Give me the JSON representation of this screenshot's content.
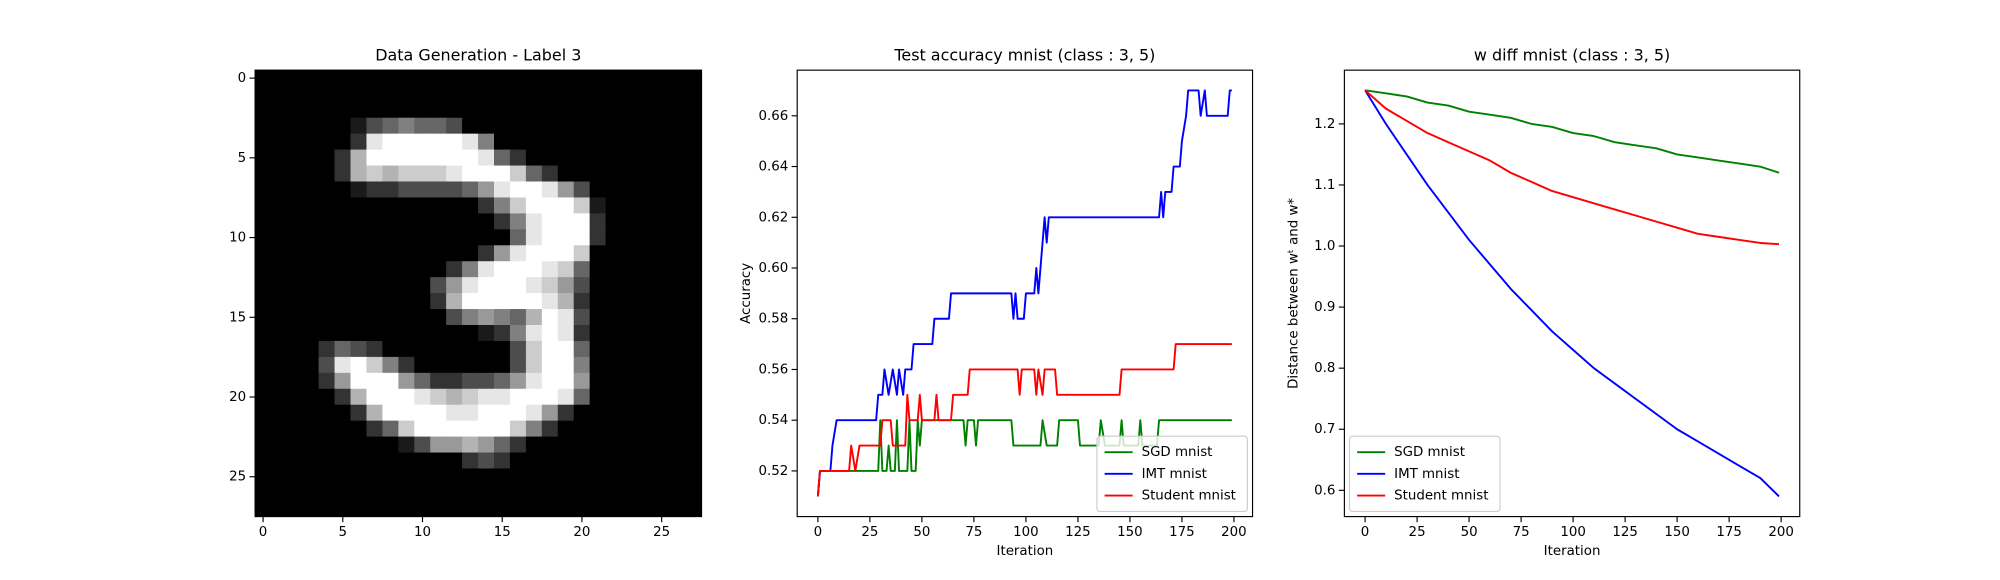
{
  "chart_data": [
    {
      "type": "heatmap",
      "title": "Data Generation - Label 3",
      "cmap": "gray",
      "xlim": [
        -0.5,
        27.5
      ],
      "ylim": [
        27.5,
        -0.5
      ],
      "xticks": [
        0,
        5,
        10,
        15,
        20,
        25
      ],
      "yticks": [
        0,
        5,
        10,
        15,
        20,
        25
      ],
      "z": [
        [
          0,
          0,
          0,
          0,
          0,
          0,
          0,
          0,
          0,
          0,
          0,
          0,
          0,
          0,
          0,
          0,
          0,
          0,
          0,
          0,
          0,
          0,
          0,
          0,
          0,
          0,
          0,
          0
        ],
        [
          0,
          0,
          0,
          0,
          0,
          0,
          0,
          0,
          0,
          0,
          0,
          0,
          0,
          0,
          0,
          0,
          0,
          0,
          0,
          0,
          0,
          0,
          0,
          0,
          0,
          0,
          0,
          0
        ],
        [
          0,
          0,
          0,
          0,
          0,
          0,
          0,
          0,
          0,
          0,
          0,
          0,
          0,
          0,
          0,
          0,
          0,
          0,
          0,
          0,
          0,
          0,
          0,
          0,
          0,
          0,
          0,
          0
        ],
        [
          0,
          0,
          0,
          0,
          0,
          0,
          0.1,
          0.3,
          0.4,
          0.5,
          0.4,
          0.4,
          0.3,
          0,
          0,
          0,
          0,
          0,
          0,
          0,
          0,
          0,
          0,
          0,
          0,
          0,
          0,
          0
        ],
        [
          0,
          0,
          0,
          0,
          0,
          0,
          0.2,
          0.9,
          1,
          1,
          1,
          1,
          1,
          0.9,
          0.5,
          0,
          0,
          0,
          0,
          0,
          0,
          0,
          0,
          0,
          0,
          0,
          0,
          0
        ],
        [
          0,
          0,
          0,
          0,
          0,
          0.2,
          0.7,
          1,
          1,
          1,
          1,
          1,
          1,
          1,
          0.9,
          0.4,
          0.2,
          0,
          0,
          0,
          0,
          0,
          0,
          0,
          0,
          0,
          0,
          0
        ],
        [
          0,
          0,
          0,
          0,
          0,
          0.2,
          0.7,
          0.8,
          0.7,
          0.8,
          0.8,
          0.8,
          0.9,
          1,
          1,
          1,
          0.8,
          0.4,
          0.2,
          0,
          0,
          0,
          0,
          0,
          0,
          0,
          0,
          0
        ],
        [
          0,
          0,
          0,
          0,
          0,
          0,
          0.1,
          0.2,
          0.2,
          0.3,
          0.3,
          0.3,
          0.3,
          0.4,
          0.6,
          0.9,
          1,
          1,
          0.9,
          0.6,
          0.3,
          0,
          0,
          0,
          0,
          0,
          0,
          0
        ],
        [
          0,
          0,
          0,
          0,
          0,
          0,
          0,
          0,
          0,
          0,
          0,
          0,
          0,
          0,
          0.2,
          0.5,
          0.8,
          1,
          1,
          1,
          0.8,
          0.1,
          0,
          0,
          0,
          0,
          0,
          0
        ],
        [
          0,
          0,
          0,
          0,
          0,
          0,
          0,
          0,
          0,
          0,
          0,
          0,
          0,
          0,
          0,
          0.2,
          0.5,
          0.9,
          1,
          1,
          1,
          0.2,
          0,
          0,
          0,
          0,
          0,
          0
        ],
        [
          0,
          0,
          0,
          0,
          0,
          0,
          0,
          0,
          0,
          0,
          0,
          0,
          0,
          0,
          0,
          0,
          0.4,
          0.9,
          1,
          1,
          1,
          0.2,
          0,
          0,
          0,
          0,
          0,
          0
        ],
        [
          0,
          0,
          0,
          0,
          0,
          0,
          0,
          0,
          0,
          0,
          0,
          0,
          0,
          0,
          0.2,
          0.6,
          0.9,
          1,
          1,
          1,
          0.8,
          0,
          0,
          0,
          0,
          0,
          0,
          0
        ],
        [
          0,
          0,
          0,
          0,
          0,
          0,
          0,
          0,
          0,
          0,
          0,
          0,
          0.2,
          0.5,
          0.9,
          1,
          1,
          1,
          0.9,
          0.8,
          0.4,
          0,
          0,
          0,
          0,
          0,
          0,
          0
        ],
        [
          0,
          0,
          0,
          0,
          0,
          0,
          0,
          0,
          0,
          0,
          0,
          0.3,
          0.6,
          0.9,
          1,
          1,
          1,
          0.9,
          0.8,
          0.6,
          0.3,
          0,
          0,
          0,
          0,
          0,
          0,
          0
        ],
        [
          0,
          0,
          0,
          0,
          0,
          0,
          0,
          0,
          0,
          0,
          0,
          0.2,
          0.7,
          1,
          1,
          1,
          1,
          1,
          0.9,
          0.7,
          0.2,
          0,
          0,
          0,
          0,
          0,
          0,
          0
        ],
        [
          0,
          0,
          0,
          0,
          0,
          0,
          0,
          0,
          0,
          0,
          0,
          0,
          0.3,
          0.5,
          0.6,
          0.5,
          0.4,
          0.7,
          1,
          0.9,
          0.3,
          0,
          0,
          0,
          0,
          0,
          0,
          0
        ],
        [
          0,
          0,
          0,
          0,
          0,
          0,
          0,
          0,
          0,
          0,
          0,
          0,
          0,
          0,
          0.1,
          0.2,
          0.5,
          0.9,
          1,
          0.9,
          0.2,
          0,
          0,
          0,
          0,
          0,
          0,
          0
        ],
        [
          0,
          0,
          0,
          0,
          0.2,
          0.4,
          0.3,
          0.2,
          0,
          0,
          0,
          0,
          0,
          0,
          0,
          0,
          0.3,
          0.8,
          1,
          1,
          0.4,
          0,
          0,
          0,
          0,
          0,
          0,
          0
        ],
        [
          0,
          0,
          0,
          0,
          0.3,
          0.9,
          1,
          0.8,
          0.5,
          0.2,
          0,
          0,
          0,
          0,
          0,
          0,
          0.3,
          0.8,
          1,
          1,
          0.5,
          0,
          0,
          0,
          0,
          0,
          0,
          0
        ],
        [
          0,
          0,
          0,
          0,
          0.2,
          0.6,
          1,
          1,
          1,
          0.6,
          0.4,
          0.2,
          0.2,
          0.3,
          0.3,
          0.4,
          0.6,
          0.9,
          1,
          1,
          0.6,
          0,
          0,
          0,
          0,
          0,
          0,
          0
        ],
        [
          0,
          0,
          0,
          0,
          0,
          0.2,
          0.7,
          1,
          1,
          1,
          0.9,
          0.8,
          0.7,
          0.8,
          0.9,
          0.9,
          1,
          1,
          1,
          0.9,
          0.4,
          0,
          0,
          0,
          0,
          0,
          0,
          0
        ],
        [
          0,
          0,
          0,
          0,
          0,
          0,
          0.2,
          0.7,
          1,
          1,
          1,
          1,
          0.9,
          0.9,
          1,
          1,
          1,
          0.9,
          0.6,
          0.2,
          0,
          0,
          0,
          0,
          0,
          0,
          0,
          0
        ],
        [
          0,
          0,
          0,
          0,
          0,
          0,
          0,
          0.2,
          0.4,
          0.8,
          1,
          1,
          1,
          1,
          1,
          1,
          0.8,
          0.5,
          0.2,
          0,
          0,
          0,
          0,
          0,
          0,
          0,
          0,
          0
        ],
        [
          0,
          0,
          0,
          0,
          0,
          0,
          0,
          0,
          0,
          0.1,
          0.3,
          0.6,
          0.6,
          0.7,
          0.6,
          0.4,
          0.2,
          0,
          0,
          0,
          0,
          0,
          0,
          0,
          0,
          0,
          0,
          0
        ],
        [
          0,
          0,
          0,
          0,
          0,
          0,
          0,
          0,
          0,
          0,
          0,
          0,
          0,
          0.2,
          0.3,
          0.2,
          0,
          0,
          0,
          0,
          0,
          0,
          0,
          0,
          0,
          0,
          0,
          0
        ],
        [
          0,
          0,
          0,
          0,
          0,
          0,
          0,
          0,
          0,
          0,
          0,
          0,
          0,
          0,
          0,
          0,
          0,
          0,
          0,
          0,
          0,
          0,
          0,
          0,
          0,
          0,
          0,
          0
        ],
        [
          0,
          0,
          0,
          0,
          0,
          0,
          0,
          0,
          0,
          0,
          0,
          0,
          0,
          0,
          0,
          0,
          0,
          0,
          0,
          0,
          0,
          0,
          0,
          0,
          0,
          0,
          0,
          0
        ],
        [
          0,
          0,
          0,
          0,
          0,
          0,
          0,
          0,
          0,
          0,
          0,
          0,
          0,
          0,
          0,
          0,
          0,
          0,
          0,
          0,
          0,
          0,
          0,
          0,
          0,
          0,
          0,
          0
        ]
      ]
    },
    {
      "type": "line",
      "title": "Test accuracy mnist (class : 3, 5)",
      "xlabel": "Iteration",
      "ylabel": "Accuracy",
      "xlim": [
        -9.95,
        208.95
      ],
      "ylim": [
        0.502,
        0.678
      ],
      "xticks": [
        0,
        25,
        50,
        75,
        100,
        125,
        150,
        175,
        200
      ],
      "yticks": [
        0.52,
        0.54,
        0.56,
        0.58,
        {
          "value": 0.6,
          "label": "0.60"
        },
        0.62,
        0.64,
        0.66
      ],
      "legend": "lower right",
      "series": [
        {
          "name": "SGD mnist",
          "color": "#008000",
          "x": [
            0,
            1,
            29,
            30,
            31,
            33,
            34,
            35,
            37,
            38,
            39,
            43,
            44,
            45,
            47,
            48,
            49,
            50,
            70,
            71,
            72,
            75,
            76,
            77,
            93,
            94,
            107,
            108,
            110,
            115,
            116,
            125,
            126,
            135,
            136,
            138,
            145,
            146,
            147,
            154,
            155,
            156,
            163,
            164,
            199
          ],
          "values": [
            0.51,
            0.52,
            0.52,
            0.54,
            0.52,
            0.52,
            0.53,
            0.52,
            0.52,
            0.54,
            0.52,
            0.52,
            0.54,
            0.52,
            0.52,
            0.54,
            0.53,
            0.54,
            0.54,
            0.53,
            0.54,
            0.54,
            0.53,
            0.54,
            0.54,
            0.53,
            0.53,
            0.54,
            0.53,
            0.53,
            0.54,
            0.54,
            0.53,
            0.53,
            0.54,
            0.53,
            0.53,
            0.54,
            0.53,
            0.53,
            0.54,
            0.53,
            0.53,
            0.54,
            0.54
          ]
        },
        {
          "name": "IMT mnist",
          "color": "#0000ff",
          "x": [
            0,
            1,
            6,
            7,
            9,
            28,
            29,
            31,
            32,
            34,
            36,
            38,
            39,
            41,
            42,
            45,
            46,
            55,
            56,
            63,
            64,
            93,
            94,
            95,
            96,
            99,
            100,
            104,
            105,
            106,
            107,
            108,
            109,
            110,
            111,
            164,
            165,
            166,
            167,
            170,
            171,
            174,
            175,
            177,
            178,
            183,
            184,
            186,
            187,
            197,
            198,
            199
          ],
          "values": [
            0.51,
            0.52,
            0.52,
            0.53,
            0.54,
            0.54,
            0.55,
            0.55,
            0.56,
            0.55,
            0.56,
            0.55,
            0.56,
            0.55,
            0.56,
            0.56,
            0.57,
            0.57,
            0.58,
            0.58,
            0.59,
            0.59,
            0.58,
            0.59,
            0.58,
            0.58,
            0.59,
            0.59,
            0.6,
            0.59,
            0.6,
            0.61,
            0.62,
            0.61,
            0.62,
            0.62,
            0.63,
            0.62,
            0.63,
            0.63,
            0.64,
            0.64,
            0.65,
            0.66,
            0.67,
            0.67,
            0.66,
            0.67,
            0.66,
            0.66,
            0.67,
            0.67
          ]
        },
        {
          "name": "Student mnist",
          "color": "#ff0000",
          "x": [
            0,
            1,
            15,
            16,
            18,
            20,
            30,
            31,
            35,
            36,
            42,
            43,
            44,
            48,
            49,
            50,
            56,
            57,
            58,
            64,
            65,
            72,
            73,
            96,
            97,
            98,
            104,
            105,
            106,
            108,
            109,
            114,
            115,
            145,
            146,
            171,
            172,
            199
          ],
          "values": [
            0.51,
            0.52,
            0.52,
            0.53,
            0.52,
            0.53,
            0.53,
            0.54,
            0.54,
            0.53,
            0.53,
            0.55,
            0.54,
            0.54,
            0.55,
            0.54,
            0.54,
            0.55,
            0.54,
            0.54,
            0.55,
            0.55,
            0.56,
            0.56,
            0.55,
            0.56,
            0.56,
            0.55,
            0.56,
            0.55,
            0.56,
            0.56,
            0.55,
            0.55,
            0.56,
            0.56,
            0.57,
            0.57
          ]
        }
      ]
    },
    {
      "type": "line",
      "title": "w diff mnist (class : 3, 5)",
      "xlabel": "Iteration",
      "ylabel": "Distance between wᵗ and w*",
      "xlim": [
        -9.95,
        208.95
      ],
      "ylim": [
        0.557,
        1.288
      ],
      "xticks": [
        0,
        25,
        50,
        75,
        100,
        125,
        150,
        175,
        200
      ],
      "yticks": [
        0.6,
        0.7,
        0.8,
        0.9,
        {
          "value": 1,
          "label": "1.0"
        },
        1.1,
        1.2
      ],
      "legend": "lower left",
      "x": [
        0,
        10,
        20,
        30,
        40,
        50,
        60,
        70,
        80,
        90,
        100,
        110,
        120,
        130,
        140,
        150,
        160,
        170,
        180,
        190,
        199
      ],
      "series": [
        {
          "name": "SGD mnist",
          "color": "#008000",
          "values": [
            1.255,
            1.25,
            1.245,
            1.235,
            1.23,
            1.22,
            1.215,
            1.21,
            1.2,
            1.195,
            1.185,
            1.18,
            1.17,
            1.165,
            1.16,
            1.15,
            1.145,
            1.14,
            1.135,
            1.13,
            1.12
          ]
        },
        {
          "name": "IMT mnist",
          "color": "#0000ff",
          "values": [
            1.255,
            1.2,
            1.15,
            1.1,
            1.055,
            1.01,
            0.97,
            0.93,
            0.895,
            0.86,
            0.83,
            0.8,
            0.775,
            0.75,
            0.725,
            0.7,
            0.68,
            0.66,
            0.64,
            0.62,
            0.59
          ]
        },
        {
          "name": "Student mnist",
          "color": "#ff0000",
          "values": [
            1.255,
            1.225,
            1.205,
            1.185,
            1.17,
            1.155,
            1.14,
            1.12,
            1.105,
            1.09,
            1.08,
            1.07,
            1.06,
            1.05,
            1.04,
            1.03,
            1.02,
            1.015,
            1.01,
            1.005,
            1.003
          ]
        }
      ]
    }
  ]
}
